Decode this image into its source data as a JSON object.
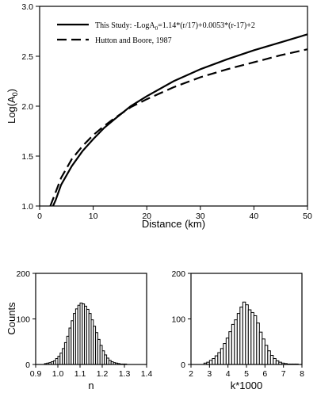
{
  "chart_data": [
    {
      "type": "line",
      "xlabel": "Distance (km)",
      "ylabel_base": "Log(A",
      "ylabel_sub": "0",
      "ylabel_end": ")",
      "xlim": [
        0,
        50
      ],
      "ylim": [
        1.0,
        3.0
      ],
      "x_ticks": [
        "0",
        "10",
        "20",
        "30",
        "40",
        "50"
      ],
      "y_ticks": [
        "1.0",
        "1.5",
        "2.0",
        "2.5",
        "3.0"
      ],
      "series": [
        {
          "name": "This Study: -LogA0=1.14*(r/17)+0.0053*(r-17)+2",
          "legend_parts": [
            "This Study: -LogA",
            "0",
            "=1.14*(r/17)+0.0053*(r-17)+2"
          ],
          "style": "solid",
          "x": [
            2.5,
            3,
            4,
            6,
            8,
            10,
            12,
            14,
            17,
            20,
            25,
            30,
            35,
            40,
            45,
            50
          ],
          "y": [
            1.0,
            1.06,
            1.21,
            1.4,
            1.55,
            1.67,
            1.78,
            1.87,
            2.0,
            2.1,
            2.25,
            2.37,
            2.47,
            2.56,
            2.64,
            2.72
          ]
        },
        {
          "name": "Hutton and Boore, 1987",
          "legend_parts": [
            "Hutton and Boore, 1987"
          ],
          "style": "dashed",
          "x": [
            2,
            3,
            4,
            6,
            8,
            10,
            12,
            14,
            17,
            20,
            25,
            30,
            35,
            40,
            45,
            50
          ],
          "y": [
            1.0,
            1.14,
            1.28,
            1.47,
            1.6,
            1.71,
            1.8,
            1.88,
            1.99,
            2.07,
            2.19,
            2.29,
            2.37,
            2.44,
            2.51,
            2.57
          ]
        }
      ],
      "legend_position": "top-left"
    },
    {
      "type": "bar",
      "xlabel": "n",
      "ylabel": "Counts",
      "xlim": [
        0.9,
        1.4
      ],
      "ylim": [
        0,
        200
      ],
      "x_ticks": [
        "0.9",
        "1.0",
        "1.1",
        "1.2",
        "1.3",
        "1.4"
      ],
      "y_ticks": [
        "0",
        "100",
        "200"
      ],
      "bin_start": 0.94,
      "bin_width": 0.01,
      "values": [
        2,
        3,
        4,
        6,
        8,
        13,
        18,
        25,
        35,
        48,
        62,
        80,
        96,
        112,
        122,
        130,
        135,
        133,
        128,
        121,
        112,
        98,
        84,
        70,
        55,
        42,
        30,
        21,
        14,
        9,
        6,
        4,
        3,
        2,
        1,
        1,
        1
      ]
    },
    {
      "type": "bar",
      "xlabel": "k*1000",
      "ylabel": "",
      "xlim": [
        2,
        8
      ],
      "ylim": [
        0,
        200
      ],
      "x_ticks": [
        "2",
        "3",
        "4",
        "5",
        "6",
        "7",
        "8"
      ],
      "y_ticks": [
        "0",
        "100",
        "200"
      ],
      "bin_start": 2.7,
      "bin_width": 0.15,
      "values": [
        3,
        5,
        9,
        13,
        19,
        26,
        35,
        46,
        58,
        72,
        88,
        98,
        112,
        126,
        137,
        131,
        120,
        114,
        107,
        91,
        71,
        56,
        42,
        30,
        20,
        13,
        8,
        5,
        3,
        2,
        1,
        1,
        1,
        1
      ]
    }
  ]
}
